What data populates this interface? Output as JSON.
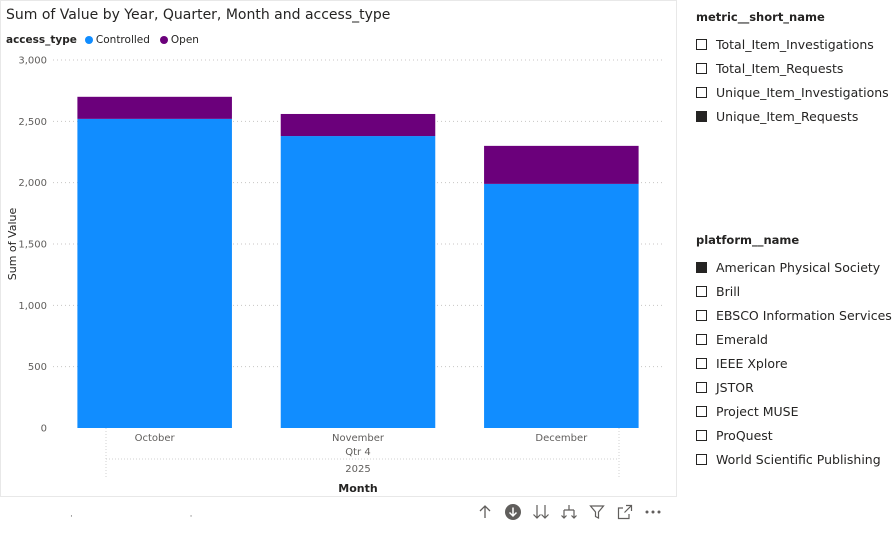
{
  "visual": {
    "title": "Sum of Value by Year, Quarter, Month and access_type",
    "legend_label": "access_type",
    "legend_items": [
      {
        "name": "Controlled",
        "color": "#118DFF"
      },
      {
        "name": "Open",
        "color": "#6B007B"
      }
    ]
  },
  "chart_data": {
    "type": "bar",
    "stacked": true,
    "title": "Sum of Value by Year, Quarter, Month and access_type",
    "xlabel": "Month",
    "ylabel": "Sum of Value",
    "categories": [
      "October",
      "November",
      "December"
    ],
    "x_hierarchy": {
      "quarter": "Qtr 4",
      "year": "2025"
    },
    "ylim": [
      0,
      3000
    ],
    "yticks": [
      0,
      500,
      1000,
      1500,
      2000,
      2500,
      3000
    ],
    "ytick_labels": [
      "0",
      "500",
      "1,000",
      "1,500",
      "2,000",
      "2,500",
      "3,000"
    ],
    "grid": true,
    "legend_position": "top-left",
    "series": [
      {
        "name": "Controlled",
        "color": "#118DFF",
        "values": [
          2520,
          2380,
          1990
        ]
      },
      {
        "name": "Open",
        "color": "#6B007B",
        "values": [
          180,
          180,
          310
        ]
      }
    ]
  },
  "slicer_metric": {
    "title": "metric__short_name",
    "items": [
      {
        "label": "Total_Item_Investigations",
        "checked": false
      },
      {
        "label": "Total_Item_Requests",
        "checked": false
      },
      {
        "label": "Unique_Item_Investigations",
        "checked": false
      },
      {
        "label": "Unique_Item_Requests",
        "checked": true
      }
    ]
  },
  "slicer_platform": {
    "title": "platform__name",
    "items": [
      {
        "label": "American Physical Society",
        "checked": true
      },
      {
        "label": "Brill",
        "checked": false
      },
      {
        "label": "EBSCO Information Services",
        "checked": false
      },
      {
        "label": "Emerald",
        "checked": false
      },
      {
        "label": "IEEE Xplore",
        "checked": false
      },
      {
        "label": "JSTOR",
        "checked": false
      },
      {
        "label": "Project MUSE",
        "checked": false
      },
      {
        "label": "ProQuest",
        "checked": false
      },
      {
        "label": "World Scientific Publishing",
        "checked": false
      }
    ]
  },
  "toolbar": {
    "icons": [
      "drill-up-icon",
      "drill-down-mode-icon",
      "expand-next-level-icon",
      "expand-hierarchy-icon",
      "filter-icon",
      "focus-mode-icon",
      "more-options-icon"
    ]
  }
}
